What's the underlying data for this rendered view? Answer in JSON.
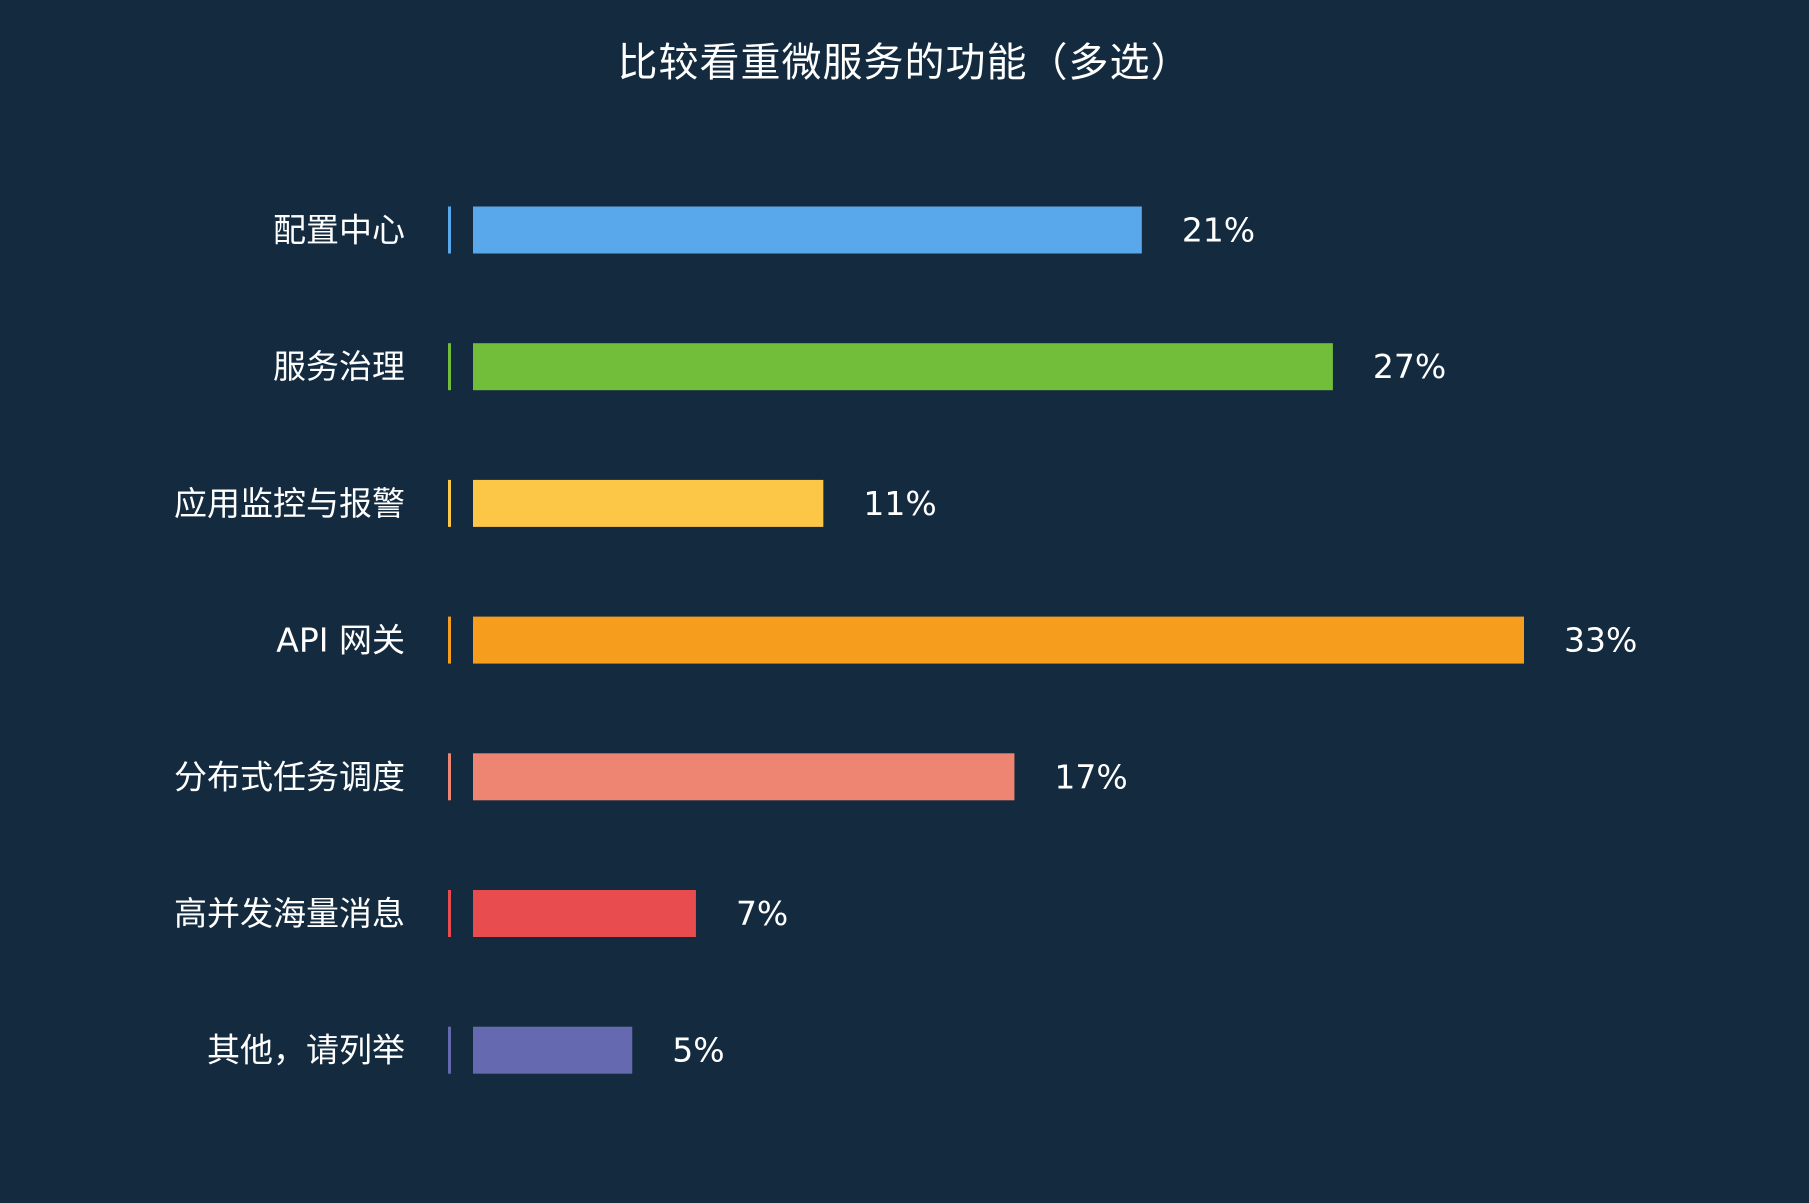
{
  "chart_data": {
    "type": "bar",
    "orientation": "horizontal",
    "title": "比较看重微服务的功能（多选）",
    "categories": [
      "配置中心",
      "服务治理",
      "应用监控与报警",
      "API 网关",
      "分布式任务调度",
      "高并发海量消息",
      "其他，请列举"
    ],
    "values": [
      21,
      27,
      11,
      33,
      17,
      7,
      5
    ],
    "value_labels": [
      "21%",
      "27%",
      "11%",
      "33%",
      "17%",
      "7%",
      "5%"
    ],
    "unit": "%",
    "colors": [
      "#5aa8ec",
      "#72be3a",
      "#fcc647",
      "#f79d1e",
      "#ee8472",
      "#e84c4f",
      "#6569b0"
    ],
    "xlim": [
      0,
      33
    ],
    "grid": false,
    "legend": "none",
    "background": "#142a3f"
  }
}
